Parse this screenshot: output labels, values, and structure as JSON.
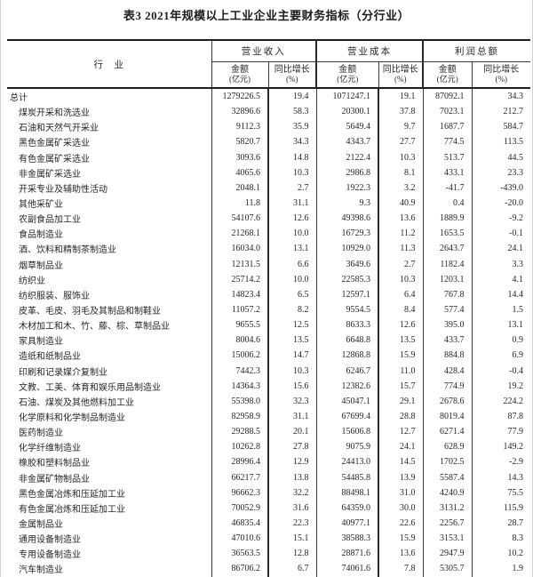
{
  "title": "表3  2021年规模以上工业企业主要财务指标（分行业）",
  "table": {
    "industry_header": "行　业",
    "groups": [
      {
        "label": "营业收入"
      },
      {
        "label": "营业成本"
      },
      {
        "label": "利润总额"
      }
    ],
    "sub_headers": {
      "amount_l1": "金额",
      "amount_l2": "(亿元)",
      "growth_l1": "同比增长",
      "growth_l2": "(%)"
    },
    "rows": [
      {
        "industry": "总计",
        "indent": false,
        "values": [
          "1279226.5",
          "19.4",
          "1071247.1",
          "19.1",
          "87092.1",
          "34.3"
        ]
      },
      {
        "industry": "煤炭开采和洗选业",
        "indent": true,
        "values": [
          "32896.6",
          "58.3",
          "20300.1",
          "37.8",
          "7023.1",
          "212.7"
        ]
      },
      {
        "industry": "石油和天然气开采业",
        "indent": true,
        "values": [
          "9112.3",
          "35.9",
          "5649.4",
          "9.7",
          "1687.7",
          "584.7"
        ]
      },
      {
        "industry": "黑色金属矿采选业",
        "indent": true,
        "values": [
          "5820.7",
          "34.3",
          "4343.7",
          "27.7",
          "774.5",
          "113.5"
        ]
      },
      {
        "industry": "有色金属矿采选业",
        "indent": true,
        "values": [
          "3093.6",
          "14.8",
          "2122.4",
          "10.3",
          "513.7",
          "44.5"
        ]
      },
      {
        "industry": "非金属矿采选业",
        "indent": true,
        "values": [
          "4065.6",
          "10.3",
          "2986.8",
          "8.1",
          "433.1",
          "23.3"
        ]
      },
      {
        "industry": "开采专业及辅助性活动",
        "indent": true,
        "values": [
          "2048.1",
          "2.7",
          "1922.3",
          "3.2",
          "-41.7",
          "-439.0"
        ]
      },
      {
        "industry": "其他采矿业",
        "indent": true,
        "values": [
          "11.8",
          "31.1",
          "9.3",
          "40.9",
          "0.4",
          "-20.0"
        ]
      },
      {
        "industry": "农副食品加工业",
        "indent": true,
        "values": [
          "54107.6",
          "12.6",
          "49398.6",
          "13.6",
          "1889.9",
          "-9.2"
        ]
      },
      {
        "industry": "食品制造业",
        "indent": true,
        "values": [
          "21268.1",
          "10.0",
          "16729.3",
          "11.2",
          "1653.5",
          "-0.1"
        ]
      },
      {
        "industry": "酒、饮料和精制茶制造业",
        "indent": true,
        "values": [
          "16034.0",
          "13.1",
          "10929.0",
          "11.3",
          "2643.7",
          "24.1"
        ]
      },
      {
        "industry": "烟草制品业",
        "indent": true,
        "values": [
          "12131.5",
          "6.6",
          "3649.6",
          "2.7",
          "1182.4",
          "3.3"
        ]
      },
      {
        "industry": "纺织业",
        "indent": true,
        "values": [
          "25714.2",
          "10.0",
          "22585.3",
          "10.3",
          "1203.1",
          "4.1"
        ]
      },
      {
        "industry": "纺织服装、服饰业",
        "indent": true,
        "values": [
          "14823.4",
          "6.5",
          "12597.1",
          "6.4",
          "767.8",
          "14.4"
        ]
      },
      {
        "industry": "皮革、毛皮、羽毛及其制品和制鞋业",
        "indent": true,
        "values": [
          "11057.2",
          "8.2",
          "9554.5",
          "8.4",
          "577.4",
          "1.5"
        ]
      },
      {
        "industry": "木材加工和木、竹、藤、棕、草制品业",
        "indent": true,
        "values": [
          "9655.5",
          "12.5",
          "8633.3",
          "12.6",
          "395.0",
          "13.1"
        ]
      },
      {
        "industry": "家具制造业",
        "indent": true,
        "values": [
          "8004.6",
          "13.5",
          "6648.8",
          "13.5",
          "433.7",
          "0.9"
        ]
      },
      {
        "industry": "造纸和纸制品业",
        "indent": true,
        "values": [
          "15006.2",
          "14.7",
          "12868.8",
          "15.9",
          "884.8",
          "6.9"
        ]
      },
      {
        "industry": "印刷和记录媒介复制业",
        "indent": true,
        "values": [
          "7442.3",
          "10.3",
          "6246.7",
          "11.0",
          "428.4",
          "-0.4"
        ]
      },
      {
        "industry": "文教、工美、体育和娱乐用品制造业",
        "indent": true,
        "values": [
          "14364.3",
          "15.6",
          "12382.6",
          "15.7",
          "774.9",
          "19.2"
        ]
      },
      {
        "industry": "石油、煤炭及其他燃料加工业",
        "indent": true,
        "values": [
          "55398.0",
          "32.3",
          "45047.1",
          "29.1",
          "2678.6",
          "224.2"
        ]
      },
      {
        "industry": "化学原料和化学制品制造业",
        "indent": true,
        "values": [
          "82958.9",
          "31.1",
          "67699.4",
          "28.8",
          "8019.4",
          "87.8"
        ]
      },
      {
        "industry": "医药制造业",
        "indent": true,
        "values": [
          "29288.5",
          "20.1",
          "15606.8",
          "12.7",
          "6271.4",
          "77.9"
        ]
      },
      {
        "industry": "化学纤维制造业",
        "indent": true,
        "values": [
          "10262.8",
          "27.8",
          "9075.9",
          "24.1",
          "628.9",
          "149.2"
        ]
      },
      {
        "industry": "橡胶和塑料制品业",
        "indent": true,
        "values": [
          "28996.4",
          "12.9",
          "24413.0",
          "14.5",
          "1702.5",
          "-2.9"
        ]
      },
      {
        "industry": "非金属矿物制品业",
        "indent": true,
        "values": [
          "66217.7",
          "13.8",
          "54485.8",
          "13.9",
          "5587.4",
          "14.3"
        ]
      },
      {
        "industry": "黑色金属冶炼和压延加工业",
        "indent": true,
        "values": [
          "96662.3",
          "32.2",
          "88498.1",
          "31.0",
          "4240.9",
          "75.5"
        ]
      },
      {
        "industry": "有色金属冶炼和压延加工业",
        "indent": true,
        "values": [
          "70052.9",
          "31.6",
          "64359.0",
          "30.0",
          "3131.2",
          "115.9"
        ]
      },
      {
        "industry": "金属制品业",
        "indent": true,
        "values": [
          "46835.4",
          "22.3",
          "40977.1",
          "22.6",
          "2256.7",
          "28.7"
        ]
      },
      {
        "industry": "通用设备制造业",
        "indent": true,
        "values": [
          "47010.6",
          "15.1",
          "38588.3",
          "15.9",
          "3153.1",
          "8.3"
        ]
      },
      {
        "industry": "专用设备制造业",
        "indent": true,
        "values": [
          "36563.5",
          "12.8",
          "28871.6",
          "13.6",
          "2947.9",
          "10.2"
        ]
      },
      {
        "industry": "汽车制造业",
        "indent": true,
        "values": [
          "86706.2",
          "6.7",
          "74061.6",
          "7.8",
          "5305.7",
          "1.9"
        ]
      }
    ]
  }
}
